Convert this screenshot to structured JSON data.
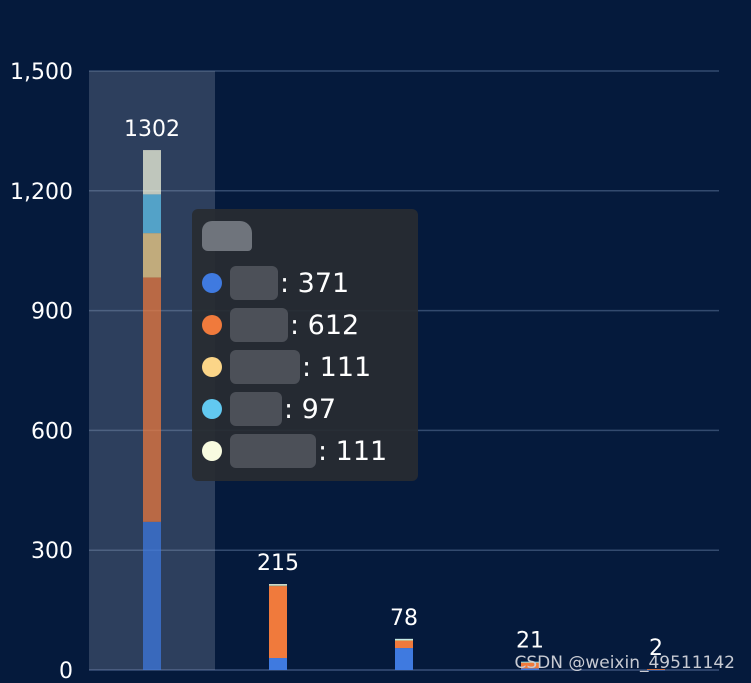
{
  "chart_data": {
    "type": "bar",
    "stacked": true,
    "categories": [
      "",
      "",
      "",
      "",
      ""
    ],
    "totals": [
      1302,
      215,
      78,
      21,
      2
    ],
    "series": [
      {
        "color": "#3f7ae0",
        "values": [
          371,
          30,
          55,
          4,
          1
        ]
      },
      {
        "color": "#f07a3c",
        "values": [
          612,
          180,
          18,
          15,
          1
        ]
      },
      {
        "color": "#fbd588",
        "values": [
          111,
          2,
          2,
          1,
          0
        ]
      },
      {
        "color": "#62c9f1",
        "values": [
          97,
          2,
          2,
          1,
          0
        ]
      },
      {
        "color": "#f8fbe0",
        "values": [
          111,
          1,
          1,
          0,
          0
        ]
      }
    ],
    "yaxis": {
      "min": 0,
      "max": 1500,
      "interval": 300,
      "tick_labels": [
        "0",
        "300",
        "600",
        "900",
        "1,200",
        "1,500"
      ]
    },
    "grid": true,
    "highlighted_category_index": 0
  },
  "tooltip": {
    "items": [
      {
        "color": "#3f7ae0",
        "value": ": 371"
      },
      {
        "color": "#f07a3c",
        "value": ": 612"
      },
      {
        "color": "#fbd588",
        "value": ": 111"
      },
      {
        "color": "#62c9f1",
        "value": ": 97"
      },
      {
        "color": "#f8fbe0",
        "value": ": 111"
      }
    ]
  },
  "watermark": "CSDN @weixin_49511142"
}
